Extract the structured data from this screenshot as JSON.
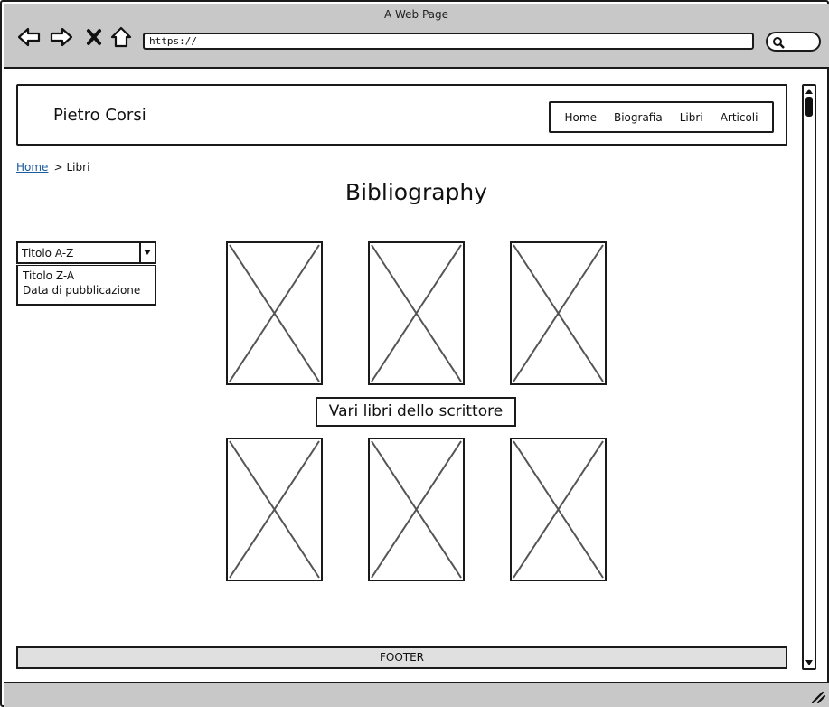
{
  "browser": {
    "window_title": "A Web Page",
    "url": "https://"
  },
  "header": {
    "site_name": "Pietro Corsi",
    "nav": [
      "Home",
      "Biografia",
      "Libri",
      "Articoli"
    ]
  },
  "breadcrumb": {
    "home": "Home",
    "separator": ">",
    "current": "Libri"
  },
  "page_title": "Bibliography",
  "sort": {
    "selected": "Titolo A-Z",
    "options": [
      "Titolo Z-A",
      "Data di pubblicazione"
    ]
  },
  "books_caption": "Vari libri dello scrittore",
  "footer": "FOOTER",
  "colors": {
    "chrome_bg": "#c8c8c8",
    "link": "#1a5aa0",
    "footer_bg": "#e0e0e0"
  }
}
